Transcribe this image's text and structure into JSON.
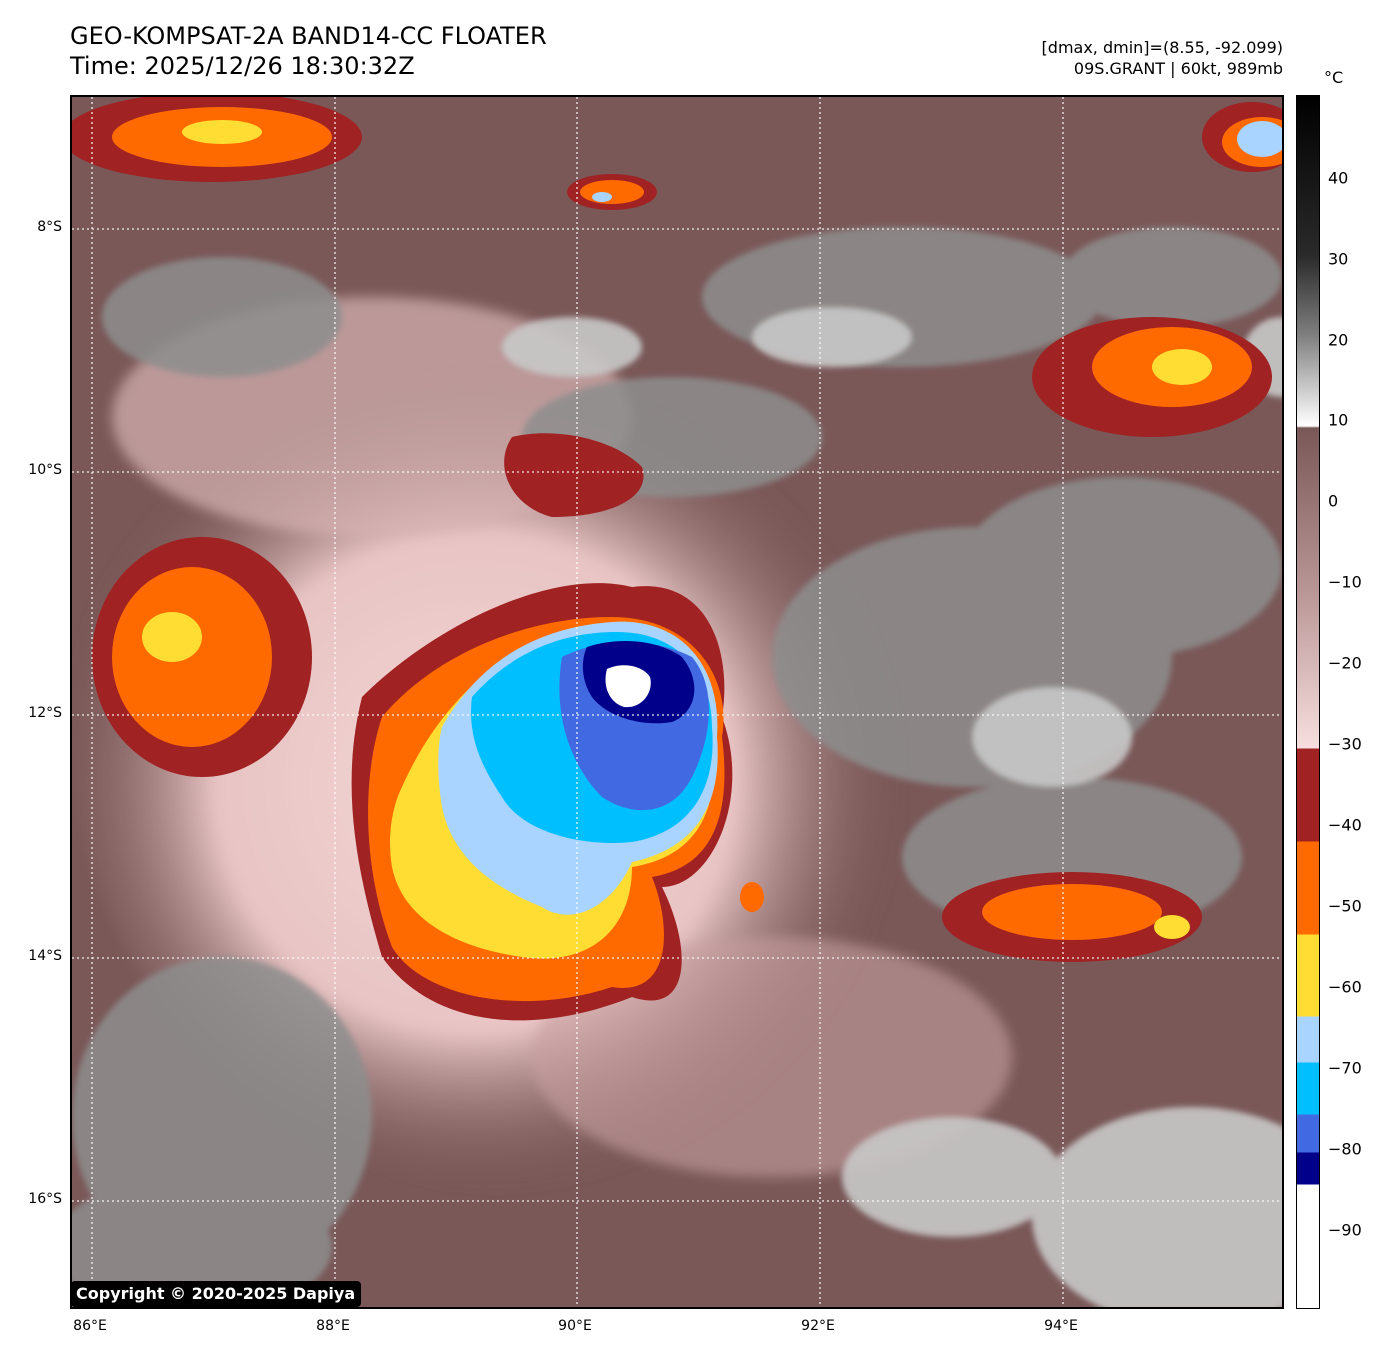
{
  "header": {
    "title": "GEO-KOMPSAT-2A BAND14-CC FLOATER",
    "time": "Time: 2025/12/26 18:30:32Z",
    "range_info": "[dmax, dmin]=(8.55, -92.099)",
    "storm_info": "09S.GRANT | 60kt, 989mb"
  },
  "map": {
    "lat_labels": [
      "8°S",
      "10°S",
      "12°S",
      "14°S",
      "16°S"
    ],
    "lon_labels": [
      "86°E",
      "88°E",
      "90°E",
      "92°E",
      "94°E"
    ],
    "copyright": "Copyright © 2020-2025 Dapiya"
  },
  "colorbar": {
    "unit": "°C",
    "ticks": [
      "40",
      "30",
      "20",
      "10",
      "0",
      "−10",
      "−20",
      "−30",
      "−40",
      "−50",
      "−60",
      "−70",
      "−80",
      "−90"
    ],
    "colors": {
      "warm_black": "#000000",
      "warm_white": "#ffffff",
      "brown": "#7a5858",
      "pink": "#f7dede",
      "dark_red": "#a02222",
      "orange": "#ff6a00",
      "yellow": "#ffdd33",
      "light_blue": "#a8d4ff",
      "sky_blue": "#00bfff",
      "royal_blue": "#4169e1",
      "navy": "#00008b",
      "cold_white": "#ffffff"
    }
  }
}
